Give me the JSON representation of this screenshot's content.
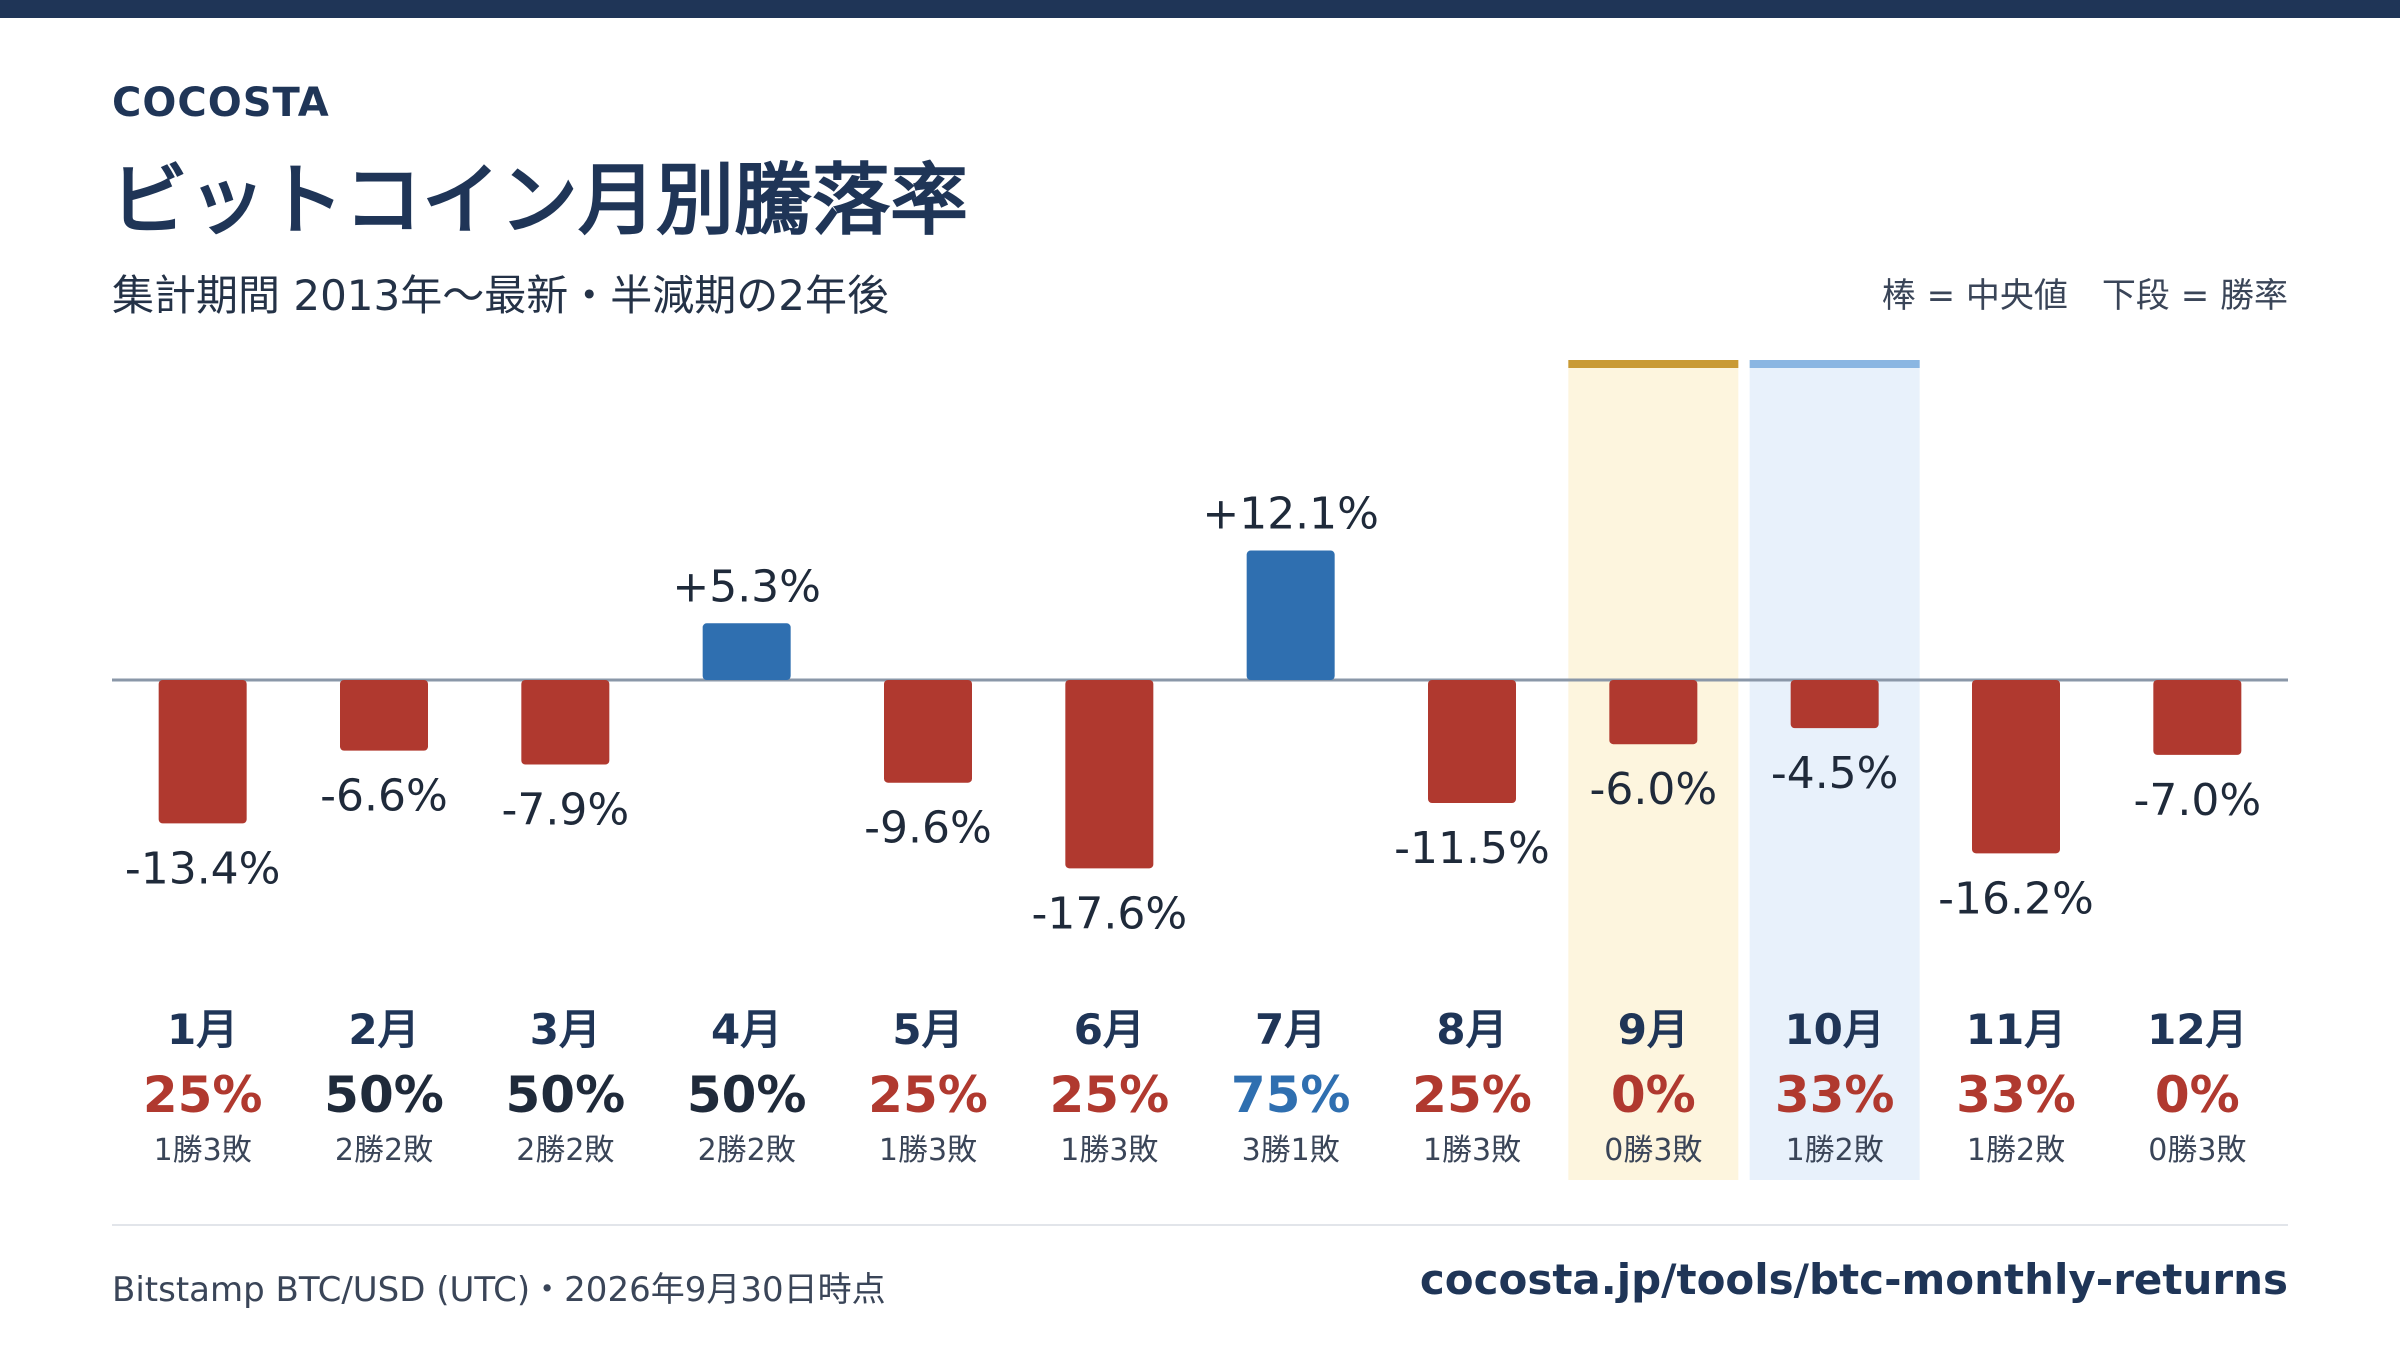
{
  "header": {
    "brand": "COCOSTA",
    "title": "ビットコイン月別騰落率",
    "subtitle": "集計期間 2013年〜最新・半減期の2年後",
    "legend_note": "棒 = 中央値　下段 = 勝率"
  },
  "footer": {
    "source": "Bitstamp BTC/USD (UTC)・2026年9月30日時点",
    "url": "cocosta.jp/tools/btc-monthly-returns"
  },
  "colors": {
    "negative": "#b0392f",
    "positive": "#2f6fb0",
    "neutral_text": "#1f2a3a",
    "highlight_current_fill": "#fdf5de",
    "highlight_current_bar": "#c99a34",
    "highlight_next_fill": "#e8f1fb",
    "highlight_next_bar": "#8ab6e2",
    "baseline": "#8a97a8"
  },
  "chart_data": {
    "type": "bar",
    "categories": [
      "1月",
      "2月",
      "3月",
      "4月",
      "5月",
      "6月",
      "7月",
      "8月",
      "9月",
      "10月",
      "11月",
      "12月"
    ],
    "values": [
      -13.4,
      -6.6,
      -7.9,
      5.3,
      -9.6,
      -17.6,
      12.1,
      -11.5,
      -6.0,
      -4.5,
      -16.2,
      -7.0
    ],
    "value_labels": [
      "-13.4%",
      "-6.6%",
      "-7.9%",
      "+5.3%",
      "-9.6%",
      "-17.6%",
      "+12.1%",
      "-11.5%",
      "-6.0%",
      "-4.5%",
      "-16.2%",
      "-7.0%"
    ],
    "win_rates": [
      "25%",
      "50%",
      "50%",
      "50%",
      "25%",
      "25%",
      "75%",
      "25%",
      "0%",
      "33%",
      "33%",
      "0%"
    ],
    "records": [
      "1勝3敗",
      "2勝2敗",
      "2勝2敗",
      "2勝2敗",
      "1勝3敗",
      "1勝3敗",
      "3勝1敗",
      "1勝3敗",
      "0勝3敗",
      "1勝2敗",
      "1勝2敗",
      "0勝3敗"
    ],
    "win_rate_colors": [
      "#b0392f",
      "#1f2a3a",
      "#1f2a3a",
      "#1f2a3a",
      "#b0392f",
      "#b0392f",
      "#2f6fb0",
      "#b0392f",
      "#b0392f",
      "#b0392f",
      "#b0392f",
      "#b0392f"
    ],
    "highlights": [
      {
        "category": "9月",
        "style": "current"
      },
      {
        "category": "10月",
        "style": "next"
      }
    ],
    "ylim": [
      -20,
      15
    ],
    "grid": false,
    "legend": "top-right"
  }
}
